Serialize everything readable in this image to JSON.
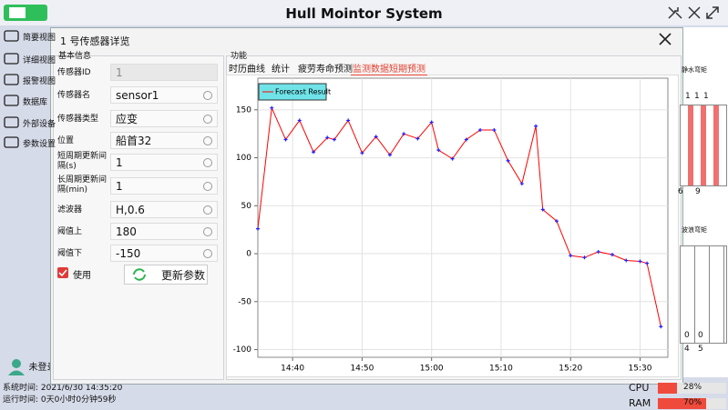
{
  "header": {
    "title": "Hull Mointor System"
  },
  "sidebar": {
    "items": [
      "简要视图",
      "详细视图",
      "报警视图",
      "数据库",
      "外部设备",
      "参数设置"
    ],
    "user": "未登录"
  },
  "status": {
    "system_time": "系统时间: 2021/6/30 14:35:20",
    "run_time": "运行时间: 0天0小时0分钟59秒"
  },
  "resources": [
    {
      "label": "CPU",
      "value": 28,
      "value_label": "28%"
    },
    {
      "label": "RAM",
      "value": 70,
      "value_label": "70%"
    }
  ],
  "background_panel": {
    "titles": [
      "静水弯矩",
      "波浪弯矩"
    ],
    "top_numbers": [
      "1",
      "1",
      "1"
    ],
    "top_axis": [
      "6",
      "9"
    ],
    "bottom_numbers": [
      "0",
      "0"
    ],
    "bottom_axis": [
      "4",
      "5"
    ]
  },
  "dialog": {
    "title": "1 号传感器详览",
    "basic_info": {
      "title": "基本信息",
      "fields": [
        {
          "label": "传感器ID",
          "value": "1"
        },
        {
          "label": "传感器名",
          "value": "sensor1"
        },
        {
          "label": "传感器类型",
          "value": "应变"
        },
        {
          "label": "位置",
          "value": "船首32"
        },
        {
          "label": "短周期更新间隔(s)",
          "value": "1"
        },
        {
          "label": "长周期更新间隔(min)",
          "value": "1"
        },
        {
          "label": "滤波器",
          "value": "H,0.6"
        },
        {
          "label": "阈值上",
          "value": "180"
        },
        {
          "label": "阈值下",
          "value": "-150"
        }
      ],
      "checkbox": "使用",
      "button": "更新参数"
    },
    "function": {
      "title": "功能",
      "tabs": [
        "时历曲线",
        "统计",
        "疲劳寿命预测",
        "监测数据短期预测"
      ]
    }
  },
  "chart_data": {
    "type": "line",
    "x": [
      "14:35",
      "14:37",
      "14:39",
      "14:41",
      "14:43",
      "14:45",
      "14:46",
      "14:48",
      "14:50",
      "14:52",
      "14:54",
      "14:56",
      "14:58",
      "15:00",
      "15:01",
      "15:03",
      "15:05",
      "15:07",
      "15:09",
      "15:11",
      "15:13",
      "15:15",
      "15:16",
      "15:18",
      "15:20",
      "15:22",
      "15:24",
      "15:26",
      "15:28",
      "15:30",
      "15:31",
      "15:33"
    ],
    "series": [
      {
        "name": "Forecast Result",
        "color": "#ff0000",
        "marker_color": "#2020ff",
        "values": [
          26,
          152,
          119,
          139,
          106,
          121,
          119,
          139,
          105,
          122,
          103,
          125,
          120,
          137,
          108,
          99,
          119,
          129,
          129,
          97,
          73,
          133,
          46,
          34,
          -2,
          -4,
          2,
          -1,
          -7,
          -8,
          -10,
          -76
        ]
      }
    ],
    "xlim": [
      "14:35",
      "15:34"
    ],
    "xticks": [
      "14:40",
      "14:50",
      "15:00",
      "15:10",
      "15:20",
      "15:30"
    ],
    "ylim": [
      -108,
      183
    ],
    "yticks": [
      -100,
      -50,
      0,
      50,
      100,
      150
    ],
    "grid": true
  }
}
